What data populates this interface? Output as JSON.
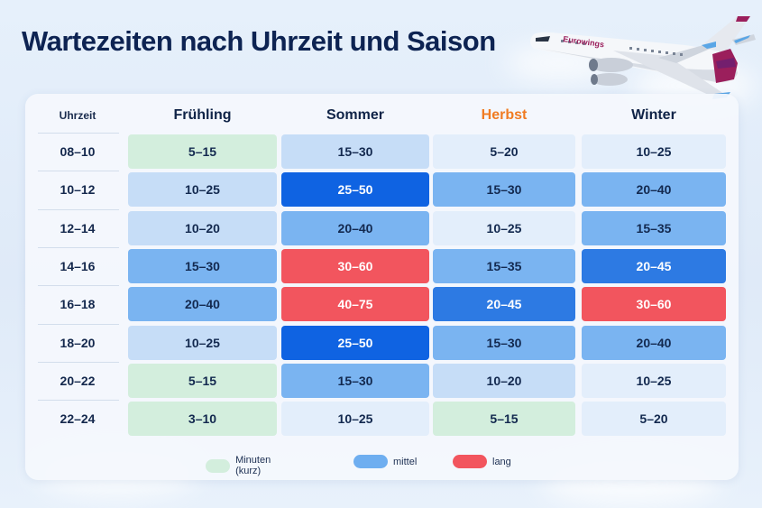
{
  "title": "Wartezeiten nach Uhrzeit und Saison",
  "plane_brand": "Eurowings",
  "chart_data": {
    "type": "heatmap",
    "title": "Wartezeiten nach Uhrzeit und Saison",
    "row_header": "Uhrzeit",
    "columns": [
      "Frühling",
      "Sommer",
      "Herbst",
      "Winter"
    ],
    "highlight_column": "Herbst",
    "rows": [
      "08–10",
      "10–12",
      "12–14",
      "14–16",
      "16–18",
      "18–20",
      "20–22",
      "22–24"
    ],
    "cells": [
      [
        {
          "text": "5–15",
          "level": "kurz"
        },
        {
          "text": "15–30",
          "level": "mittel-1"
        },
        {
          "text": "5–20",
          "level": "sehr-kurz"
        },
        {
          "text": "10–25",
          "level": "sehr-kurz"
        }
      ],
      [
        {
          "text": "10–25",
          "level": "mittel-1"
        },
        {
          "text": "25–50",
          "level": "mittel-4"
        },
        {
          "text": "15–30",
          "level": "mittel-2"
        },
        {
          "text": "20–40",
          "level": "mittel-2"
        }
      ],
      [
        {
          "text": "10–20",
          "level": "mittel-1"
        },
        {
          "text": "20–40",
          "level": "mittel-2"
        },
        {
          "text": "10–25",
          "level": "sehr-kurz"
        },
        {
          "text": "15–35",
          "level": "mittel-2"
        }
      ],
      [
        {
          "text": "15–30",
          "level": "mittel-2"
        },
        {
          "text": "30–60",
          "level": "lang"
        },
        {
          "text": "15–35",
          "level": "mittel-2"
        },
        {
          "text": "20–45",
          "level": "mittel-3"
        }
      ],
      [
        {
          "text": "20–40",
          "level": "mittel-2"
        },
        {
          "text": "40–75",
          "level": "lang"
        },
        {
          "text": "20–45",
          "level": "mittel-3"
        },
        {
          "text": "30–60",
          "level": "lang"
        }
      ],
      [
        {
          "text": "10–25",
          "level": "mittel-1"
        },
        {
          "text": "25–50",
          "level": "mittel-4"
        },
        {
          "text": "15–30",
          "level": "mittel-2"
        },
        {
          "text": "20–40",
          "level": "mittel-2"
        }
      ],
      [
        {
          "text": "5–15",
          "level": "kurz"
        },
        {
          "text": "15–30",
          "level": "mittel-2"
        },
        {
          "text": "10–20",
          "level": "mittel-1"
        },
        {
          "text": "10–25",
          "level": "sehr-kurz"
        }
      ],
      [
        {
          "text": "3–10",
          "level": "kurz"
        },
        {
          "text": "10–25",
          "level": "sehr-kurz"
        },
        {
          "text": "5–15",
          "level": "kurz"
        },
        {
          "text": "5–20",
          "level": "sehr-kurz"
        }
      ]
    ],
    "legend": [
      {
        "label": "Minuten (kurz)",
        "color": "#d3eedd"
      },
      {
        "label": "mittel",
        "color": "#6eaef0"
      },
      {
        "label": "lang",
        "color": "#f2555e"
      }
    ],
    "level_colors": {
      "kurz": "#d3eedd",
      "sehr-kurz": "#e3eefb",
      "mittel-1": "#c6ddf7",
      "mittel-2": "#7ab4f1",
      "mittel-3": "#2d7ae3",
      "mittel-4": "#0f63e2",
      "lang": "#f2555e"
    },
    "dark_levels": [
      "mittel-3",
      "mittel-4",
      "lang"
    ],
    "accent_color": "#f07b22"
  }
}
